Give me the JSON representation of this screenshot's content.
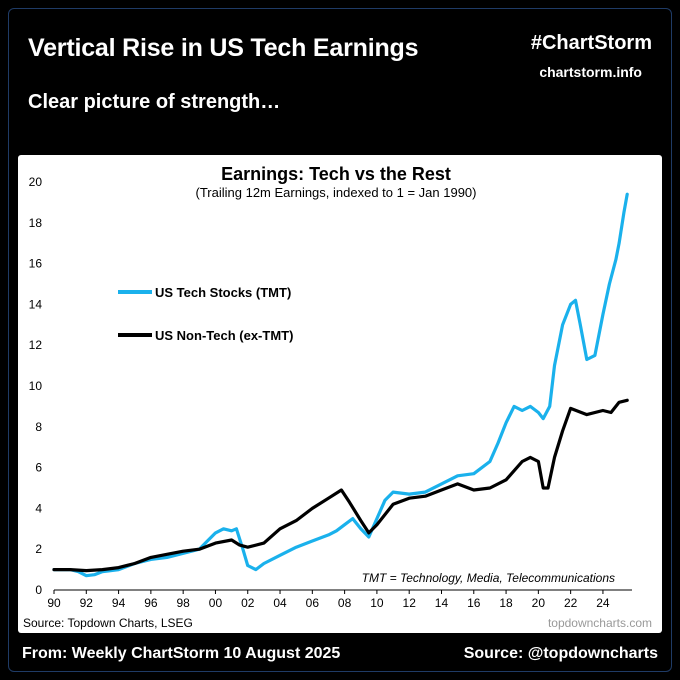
{
  "header": {
    "title": "Vertical Rise in US Tech Earnings",
    "subtitle": "Clear picture of strength…",
    "hashtag": "#ChartStorm",
    "site": "chartstorm.info"
  },
  "footer": {
    "left": "From: Weekly ChartStorm 10 August 2025",
    "right": "Source: @topdowncharts"
  },
  "colors": {
    "tech": "#1ab1ec",
    "nontech": "#000000"
  },
  "chart_data": {
    "type": "line",
    "title": "Earnings: Tech vs the Rest",
    "subtitle": "(Trailing 12m Earnings, indexed to 1 = Jan 1990)",
    "xlabel": "",
    "ylabel": "",
    "xlim": [
      1990,
      2025.8
    ],
    "ylim": [
      0,
      20
    ],
    "x_ticks": [
      1990,
      1992,
      1994,
      1996,
      1998,
      2000,
      2002,
      2004,
      2006,
      2008,
      2010,
      2012,
      2014,
      2016,
      2018,
      2020,
      2022,
      2024
    ],
    "x_tick_labels": [
      "90",
      "92",
      "94",
      "96",
      "98",
      "00",
      "02",
      "04",
      "06",
      "08",
      "10",
      "12",
      "14",
      "16",
      "18",
      "20",
      "22",
      "24"
    ],
    "y_ticks": [
      0,
      2,
      4,
      6,
      8,
      10,
      12,
      14,
      16,
      18,
      20
    ],
    "y_tick_labels": [
      "0",
      "2",
      "4",
      "6",
      "8",
      "10",
      "12",
      "14",
      "16",
      "18",
      "20"
    ],
    "grid": false,
    "legend": "upper-left",
    "annotation": "TMT = Technology, Media, Telecommunications",
    "source": "Source: Topdown Charts, LSEG",
    "watermark": "topdowncharts.com",
    "series": [
      {
        "name": "US Tech Stocks (TMT)",
        "color": "#1ab1ec",
        "x": [
          1990,
          1991,
          1991.5,
          1992,
          1992.5,
          1993,
          1994,
          1995,
          1996,
          1997,
          1998,
          1999,
          1999.5,
          2000,
          2000.5,
          2001,
          2001.3,
          2001.7,
          2002,
          2002.5,
          2003,
          2004,
          2005,
          2006,
          2007,
          2007.5,
          2008,
          2008.5,
          2009,
          2009.5,
          2010,
          2010.5,
          2011,
          2012,
          2013,
          2014,
          2015,
          2016,
          2017,
          2017.5,
          2018,
          2018.5,
          2019,
          2019.5,
          2020,
          2020.3,
          2020.7,
          2021,
          2021.5,
          2022,
          2022.3,
          2022.6,
          2023,
          2023.5,
          2024,
          2024.4,
          2024.8,
          2025,
          2025.3,
          2025.5
        ],
        "values": [
          1.0,
          1.0,
          0.9,
          0.7,
          0.75,
          0.9,
          1.0,
          1.3,
          1.5,
          1.6,
          1.8,
          2.0,
          2.4,
          2.8,
          3.0,
          2.9,
          3.0,
          2.0,
          1.2,
          1.0,
          1.3,
          1.7,
          2.1,
          2.4,
          2.7,
          2.9,
          3.2,
          3.5,
          3.0,
          2.6,
          3.5,
          4.4,
          4.8,
          4.7,
          4.8,
          5.2,
          5.6,
          5.7,
          6.3,
          7.2,
          8.2,
          9.0,
          8.8,
          9.0,
          8.7,
          8.4,
          9.0,
          11.0,
          13.0,
          14.0,
          14.2,
          13.0,
          11.3,
          11.5,
          13.5,
          15.0,
          16.2,
          17.0,
          18.5,
          19.4
        ]
      },
      {
        "name": "US Non-Tech (ex-TMT)",
        "color": "#000000",
        "x": [
          1990,
          1991,
          1992,
          1993,
          1994,
          1995,
          1996,
          1997,
          1998,
          1999,
          2000,
          2001,
          2001.5,
          2002,
          2003,
          2004,
          2005,
          2006,
          2007,
          2007.8,
          2008.3,
          2009,
          2009.5,
          2010,
          2011,
          2012,
          2013,
          2014,
          2015,
          2016,
          2017,
          2018,
          2019,
          2019.5,
          2020,
          2020.3,
          2020.6,
          2021,
          2021.5,
          2022,
          2023,
          2024,
          2024.5,
          2025,
          2025.5
        ],
        "values": [
          1.0,
          1.0,
          0.95,
          1.0,
          1.1,
          1.3,
          1.6,
          1.75,
          1.9,
          2.0,
          2.3,
          2.45,
          2.2,
          2.1,
          2.3,
          3.0,
          3.4,
          4.0,
          4.5,
          4.9,
          4.3,
          3.4,
          2.8,
          3.2,
          4.2,
          4.5,
          4.6,
          4.9,
          5.2,
          4.9,
          5.0,
          5.4,
          6.3,
          6.5,
          6.3,
          5.0,
          5.0,
          6.5,
          7.8,
          8.9,
          8.6,
          8.8,
          8.7,
          9.2,
          9.3
        ]
      }
    ]
  }
}
